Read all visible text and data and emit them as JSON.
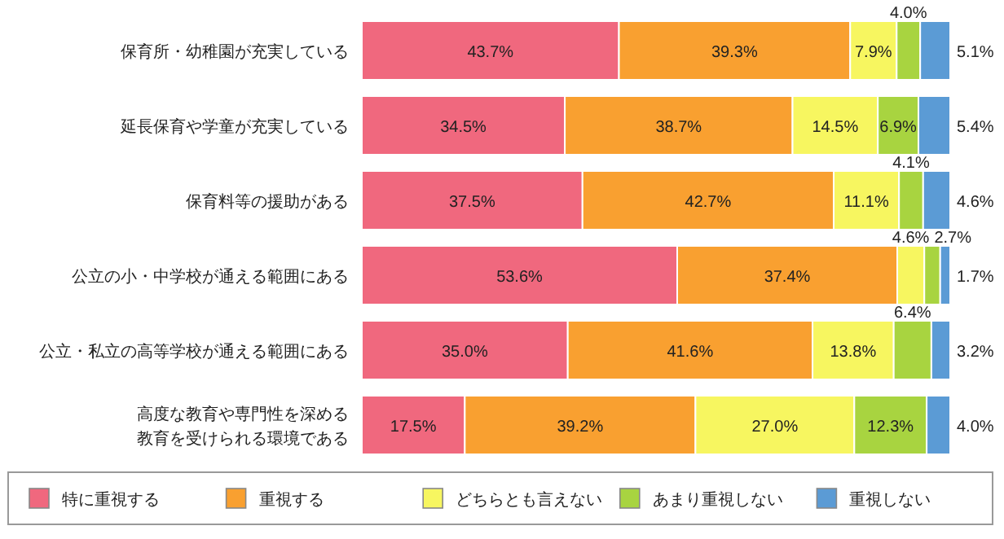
{
  "chart_data": {
    "type": "bar",
    "orientation": "horizontal",
    "stacked": true,
    "legend": "bottom",
    "categories": [
      "保育所・幼稚園が充実している",
      "延長保育や学童が充実している",
      "保育料等の援助がある",
      "公立の小・中学校が通える範囲にある",
      "公立・私立の高等学校が通える範囲にある",
      "高度な教育や専門性を深める教育を受けられる環境である"
    ],
    "series": [
      {
        "name": "特に重視する",
        "color": "#f0687e",
        "values": [
          43.7,
          34.5,
          37.5,
          53.6,
          35.0,
          17.5
        ],
        "value_labels": [
          "43.7%",
          "34.5%",
          "37.5%",
          "53.6%",
          "35.0%",
          "17.5%"
        ]
      },
      {
        "name": "重視する",
        "color": "#f9a030",
        "values": [
          39.3,
          38.7,
          42.7,
          37.4,
          41.6,
          39.2
        ],
        "value_labels": [
          "39.3%",
          "38.7%",
          "42.7%",
          "37.4%",
          "41.6%",
          "39.2%"
        ]
      },
      {
        "name": "どちらとも言えない",
        "color": "#f7f660",
        "values": [
          7.9,
          14.5,
          11.1,
          4.6,
          13.8,
          27.0
        ],
        "value_labels": [
          "7.9%",
          "14.5%",
          "11.1%",
          "4.6%",
          "13.8%",
          "27.0%"
        ]
      },
      {
        "name": "あまり重視しない",
        "color": "#a8d440",
        "values": [
          4.0,
          6.9,
          4.1,
          2.7,
          6.4,
          12.3
        ],
        "value_labels": [
          "4.0%",
          "6.9%",
          "4.1%",
          "2.7%",
          "6.4%",
          "12.3%"
        ]
      },
      {
        "name": "重視しない",
        "color": "#5b9bd5",
        "values": [
          5.1,
          5.4,
          4.6,
          1.7,
          3.2,
          4.0
        ],
        "value_labels": [
          "5.1%",
          "5.4%",
          "4.6%",
          "1.7%",
          "3.2%",
          "4.0%"
        ]
      }
    ]
  }
}
